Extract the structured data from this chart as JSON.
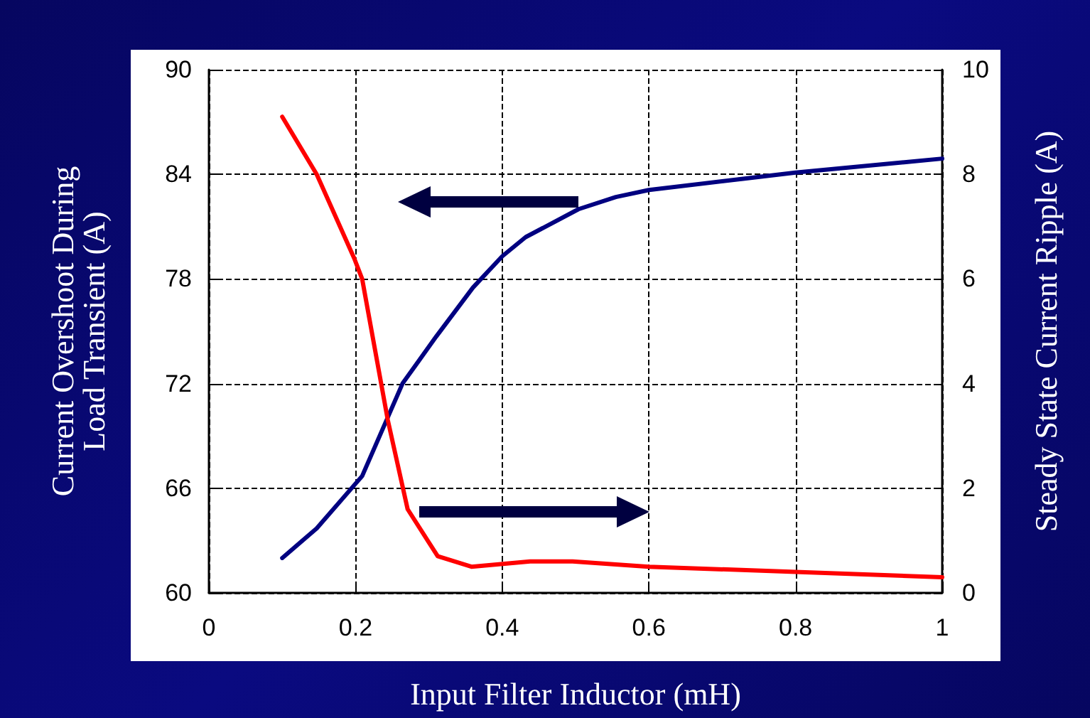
{
  "chart_data": {
    "type": "line",
    "xlabel": "Input Filter Inductor (mH)",
    "ylabel": "Current Overshoot During\nLoad Transient (A)",
    "y2label": "Steady State Current Ripple (A)",
    "xlim": [
      0,
      1
    ],
    "xticks": [
      0,
      0.2,
      0.4,
      0.6,
      0.8,
      1
    ],
    "ylim": [
      60,
      90
    ],
    "yticks": [
      60,
      66,
      72,
      78,
      84,
      90
    ],
    "y2lim": [
      0,
      10
    ],
    "y2ticks": [
      0,
      2,
      4,
      6,
      8,
      10
    ],
    "grid": true,
    "marker": "none",
    "line_style": "solid",
    "series": [
      {
        "color": "#000080",
        "x": [
          0.1,
          0.147,
          0.209,
          0.264,
          0.31,
          0.36,
          0.4,
          0.432,
          0.504,
          0.555,
          0.6,
          0.8,
          1.0
        ],
        "values": [
          62.0,
          63.7,
          66.7,
          72.0,
          74.7,
          77.5,
          79.3,
          80.4,
          82.0,
          82.7,
          83.1,
          84.1,
          84.9
        ]
      },
      {
        "color": "#ff0000",
        "axis": "y2",
        "x": [
          0.1,
          0.147,
          0.198,
          0.209,
          0.244,
          0.271,
          0.312,
          0.358,
          0.438,
          0.496,
          0.6,
          0.8,
          1.0
        ],
        "values": [
          9.1,
          8.0,
          6.4,
          6.0,
          3.3,
          1.6,
          0.7,
          0.5,
          0.6,
          0.6,
          0.5,
          0.4,
          0.3
        ]
      }
    ]
  }
}
